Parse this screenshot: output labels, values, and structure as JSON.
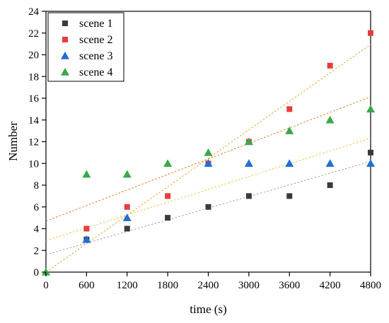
{
  "chart_data": {
    "type": "scatter",
    "xlabel": "time (s)",
    "ylabel": "Number",
    "xlim": [
      0,
      4800
    ],
    "ylim": [
      0,
      24
    ],
    "x_ticks": [
      0,
      600,
      1200,
      1800,
      2400,
      3000,
      3600,
      4200,
      4800
    ],
    "y_ticks": [
      0,
      2,
      4,
      6,
      8,
      10,
      12,
      14,
      16,
      18,
      20,
      22,
      24
    ],
    "grid": false,
    "legend_position": "top-left",
    "series": [
      {
        "name": "scene 1",
        "marker": "square",
        "color": "#3a3a3a",
        "trend_color": "#a0a0a0",
        "x": [
          600,
          1200,
          1800,
          2400,
          3000,
          3600,
          4200,
          4800
        ],
        "y": [
          3,
          4,
          5,
          6,
          7,
          7,
          8,
          11
        ],
        "trendline": [
          1.6,
          0.001786
        ]
      },
      {
        "name": "scene 2",
        "marker": "square",
        "color": "#e83b3b",
        "trend_color": "#e8a030",
        "x": [
          600,
          1200,
          1800,
          2400,
          3000,
          3600,
          4200,
          4800
        ],
        "y": [
          4,
          6,
          7,
          10,
          12,
          15,
          19,
          22
        ],
        "trendline": [
          0.0,
          0.004365
        ]
      },
      {
        "name": "scene 3",
        "marker": "triangle",
        "color": "#1f6fd6",
        "trend_color": "#f0c040",
        "x": [
          600,
          1200,
          2400,
          3000,
          3600,
          4200,
          4800
        ],
        "y": [
          3,
          5,
          10,
          10,
          10,
          10,
          10
        ],
        "trendline": [
          2.9,
          0.001964
        ]
      },
      {
        "name": "scene 4",
        "marker": "triangle",
        "color": "#3aa84a",
        "trend_color": "#e07a1a",
        "x": [
          0,
          600,
          1200,
          1800,
          2400,
          3000,
          3600,
          4200,
          4800
        ],
        "y": [
          0,
          9,
          9,
          10,
          11,
          12,
          13,
          14,
          15
        ],
        "trendline": [
          4.7,
          0.002381
        ]
      }
    ]
  }
}
